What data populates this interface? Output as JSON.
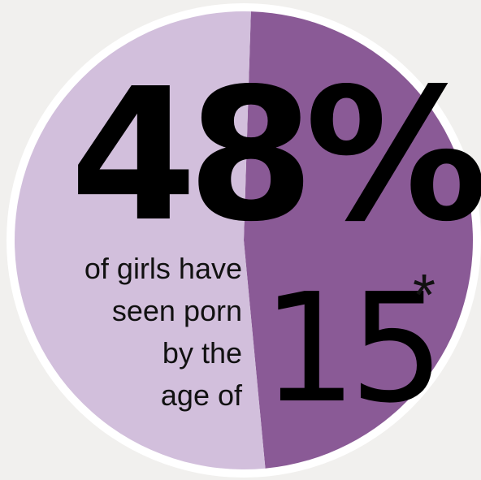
{
  "chart_data": {
    "type": "pie",
    "slices": [
      {
        "label": "",
        "value": 48,
        "color": "#8a5a96"
      },
      {
        "label": "",
        "value": 52,
        "color": "#d2bfdc"
      }
    ],
    "stat": "48%",
    "caption_lines": [
      "of girls have",
      "seen porn",
      "by the",
      "age of"
    ],
    "age": "15",
    "footnote_marker": "*"
  },
  "colors": {
    "dark_slice": "#8a5a96",
    "light_slice": "#d2bfdc",
    "ring": "#ffffff",
    "background": "#f1f0ee"
  }
}
